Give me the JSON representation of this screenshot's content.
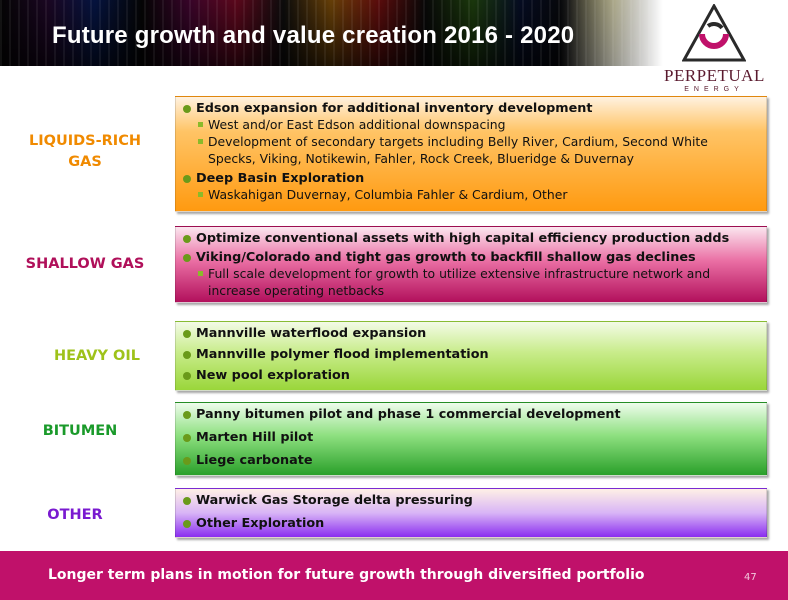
{
  "slide": {
    "title": "Future growth and value creation 2016 - 2020",
    "page_number": "47"
  },
  "logo": {
    "name": "PERPETUAL",
    "sub": "ENERGY"
  },
  "categories": {
    "liquids": "LIQUIDS-RICH GAS",
    "shallow": "SHALLOW GAS",
    "heavy": "HEAVY OIL",
    "bitumen": "BITUMEN",
    "other": "OTHER"
  },
  "liquids": {
    "b1": "Edson expansion for additional inventory development",
    "b1_s1": "West and/or East Edson additional downspacing",
    "b1_s2": "Development of secondary targets including Belly River, Cardium, Second White Specks, Viking, Notikewin, Fahler, Rock Creek, Blueridge & Duvernay",
    "b2": "Deep Basin Exploration",
    "b2_s1": "Waskahigan Duvernay, Columbia Fahler & Cardium, Other"
  },
  "shallow": {
    "b1": "Optimize conventional assets with high capital efficiency production adds",
    "b2": "Viking/Colorado and tight gas growth to backfill shallow gas declines",
    "b2_s1": "Full scale development for growth to utilize extensive infrastructure network and increase operating netbacks"
  },
  "heavy": {
    "b1": "Mannville waterflood expansion",
    "b2": "Mannville polymer flood implementation",
    "b3": "New pool exploration"
  },
  "bitumen": {
    "b1": "Panny bitumen pilot and phase 1 commercial development",
    "b2": "Marten Hill pilot",
    "b3": "Liege carbonate"
  },
  "other": {
    "b1": "Warwick Gas Storage delta pressuring",
    "b2": "Other Exploration"
  },
  "footer": {
    "text": "Longer term plans  in motion for future growth through diversified portfolio"
  },
  "colors": {
    "liquids": "#f08a00",
    "shallow": "#b0105a",
    "heavy": "#9ec21a",
    "bitumen": "#1a9a2a",
    "other": "#7a1ad0",
    "footer": "#c0116a"
  }
}
